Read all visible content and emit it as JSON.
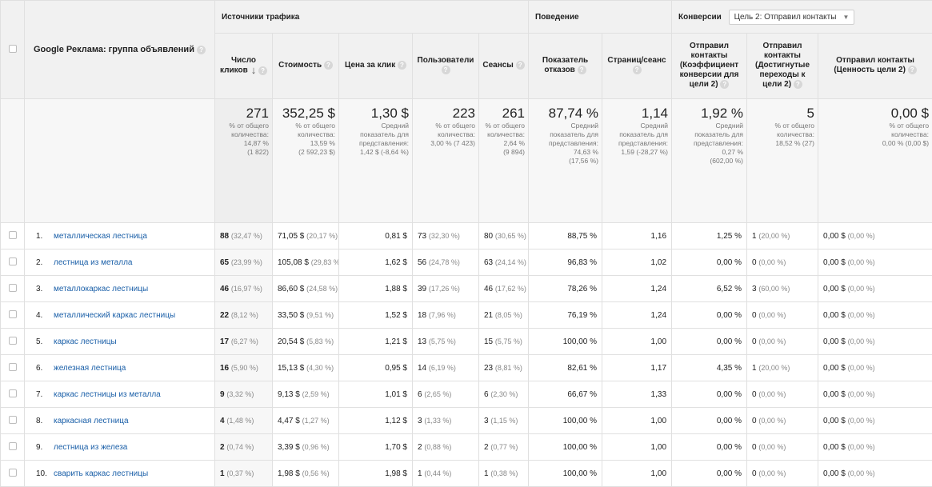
{
  "groups": {
    "traffic": "Источники трафика",
    "behavior": "Поведение",
    "conversions": "Конверсии",
    "goal_select": "Цель 2: Отправил контакты"
  },
  "dimension_header": "Google Реклама: группа объявлений",
  "columns": [
    "Число кликов",
    "Стоимость",
    "Цена за клик",
    "Пользователи",
    "Сеансы",
    "Показатель отказов",
    "Страниц/сеанс",
    "Отправил контакты (Коэффициент конверсии для цели 2)",
    "Отправил контакты (Достигнутые переходы к цели 2)",
    "Отправил контакты (Ценность цели 2)"
  ],
  "totals": [
    {
      "value": "271",
      "lines": [
        "% от общего",
        "количества:",
        "14,87 %",
        "(1 822)"
      ]
    },
    {
      "value": "352,25 $",
      "lines": [
        "% от общего",
        "количества:",
        "13,59 %",
        "(2 592,23 $)"
      ]
    },
    {
      "value": "1,30 $",
      "lines": [
        "Средний",
        "показатель для",
        "представления:",
        "1,42 $ (-8,64 %)"
      ]
    },
    {
      "value": "223",
      "lines": [
        "% от общего",
        "количества:",
        "3,00 % (7 423)"
      ]
    },
    {
      "value": "261",
      "lines": [
        "% от общего",
        "количества:",
        "2,64 %",
        "(9 894)"
      ]
    },
    {
      "value": "87,74 %",
      "lines": [
        "Средний",
        "показатель для",
        "представления:",
        "74,63 %",
        "(17,56 %)"
      ]
    },
    {
      "value": "1,14",
      "lines": [
        "Средний",
        "показатель для",
        "представления:",
        "1,59 (-28,27 %)"
      ]
    },
    {
      "value": "1,92 %",
      "lines": [
        "Средний",
        "показатель для",
        "представления:",
        "0,27 %",
        "(602,00 %)"
      ]
    },
    {
      "value": "5",
      "lines": [
        "% от общего",
        "количества:",
        "18,52 % (27)"
      ]
    },
    {
      "value": "0,00 $",
      "lines": [
        "% от общего",
        "количества:",
        "0,00 % (0,00 $)"
      ]
    }
  ],
  "rows": [
    {
      "idx": "1.",
      "name": "металлическая лестница",
      "clicks": "88",
      "clicks_pct": "(32,47 %)",
      "cost": "71,05 $",
      "cost_pct": "(20,17 %)",
      "cpc": "0,81 $",
      "users": "73",
      "users_pct": "(32,30 %)",
      "sessions": "80",
      "sessions_pct": "(30,65 %)",
      "bounce": "88,75 %",
      "pps": "1,16",
      "conv": "1,25 %",
      "goals": "1",
      "goals_pct": "(20,00 %)",
      "value": "0,00 $",
      "value_pct": "(0,00 %)"
    },
    {
      "idx": "2.",
      "name": "лестница из металла",
      "clicks": "65",
      "clicks_pct": "(23,99 %)",
      "cost": "105,08 $",
      "cost_pct": "(29,83 %)",
      "cpc": "1,62 $",
      "users": "56",
      "users_pct": "(24,78 %)",
      "sessions": "63",
      "sessions_pct": "(24,14 %)",
      "bounce": "96,83 %",
      "pps": "1,02",
      "conv": "0,00 %",
      "goals": "0",
      "goals_pct": "(0,00 %)",
      "value": "0,00 $",
      "value_pct": "(0,00 %)"
    },
    {
      "idx": "3.",
      "name": "металлокаркас лестницы",
      "clicks": "46",
      "clicks_pct": "(16,97 %)",
      "cost": "86,60 $",
      "cost_pct": "(24,58 %)",
      "cpc": "1,88 $",
      "users": "39",
      "users_pct": "(17,26 %)",
      "sessions": "46",
      "sessions_pct": "(17,62 %)",
      "bounce": "78,26 %",
      "pps": "1,24",
      "conv": "6,52 %",
      "goals": "3",
      "goals_pct": "(60,00 %)",
      "value": "0,00 $",
      "value_pct": "(0,00 %)"
    },
    {
      "idx": "4.",
      "name": "металлический каркас лестницы",
      "clicks": "22",
      "clicks_pct": "(8,12 %)",
      "cost": "33,50 $",
      "cost_pct": "(9,51 %)",
      "cpc": "1,52 $",
      "users": "18",
      "users_pct": "(7,96 %)",
      "sessions": "21",
      "sessions_pct": "(8,05 %)",
      "bounce": "76,19 %",
      "pps": "1,24",
      "conv": "0,00 %",
      "goals": "0",
      "goals_pct": "(0,00 %)",
      "value": "0,00 $",
      "value_pct": "(0,00 %)"
    },
    {
      "idx": "5.",
      "name": "каркас лестницы",
      "clicks": "17",
      "clicks_pct": "(6,27 %)",
      "cost": "20,54 $",
      "cost_pct": "(5,83 %)",
      "cpc": "1,21 $",
      "users": "13",
      "users_pct": "(5,75 %)",
      "sessions": "15",
      "sessions_pct": "(5,75 %)",
      "bounce": "100,00 %",
      "pps": "1,00",
      "conv": "0,00 %",
      "goals": "0",
      "goals_pct": "(0,00 %)",
      "value": "0,00 $",
      "value_pct": "(0,00 %)"
    },
    {
      "idx": "6.",
      "name": "железная лестница",
      "clicks": "16",
      "clicks_pct": "(5,90 %)",
      "cost": "15,13 $",
      "cost_pct": "(4,30 %)",
      "cpc": "0,95 $",
      "users": "14",
      "users_pct": "(6,19 %)",
      "sessions": "23",
      "sessions_pct": "(8,81 %)",
      "bounce": "82,61 %",
      "pps": "1,17",
      "conv": "4,35 %",
      "goals": "1",
      "goals_pct": "(20,00 %)",
      "value": "0,00 $",
      "value_pct": "(0,00 %)"
    },
    {
      "idx": "7.",
      "name": "каркас лестницы из металла",
      "clicks": "9",
      "clicks_pct": "(3,32 %)",
      "cost": "9,13 $",
      "cost_pct": "(2,59 %)",
      "cpc": "1,01 $",
      "users": "6",
      "users_pct": "(2,65 %)",
      "sessions": "6",
      "sessions_pct": "(2,30 %)",
      "bounce": "66,67 %",
      "pps": "1,33",
      "conv": "0,00 %",
      "goals": "0",
      "goals_pct": "(0,00 %)",
      "value": "0,00 $",
      "value_pct": "(0,00 %)"
    },
    {
      "idx": "8.",
      "name": "каркасная лестница",
      "clicks": "4",
      "clicks_pct": "(1,48 %)",
      "cost": "4,47 $",
      "cost_pct": "(1,27 %)",
      "cpc": "1,12 $",
      "users": "3",
      "users_pct": "(1,33 %)",
      "sessions": "3",
      "sessions_pct": "(1,15 %)",
      "bounce": "100,00 %",
      "pps": "1,00",
      "conv": "0,00 %",
      "goals": "0",
      "goals_pct": "(0,00 %)",
      "value": "0,00 $",
      "value_pct": "(0,00 %)"
    },
    {
      "idx": "9.",
      "name": "лестница из железа",
      "clicks": "2",
      "clicks_pct": "(0,74 %)",
      "cost": "3,39 $",
      "cost_pct": "(0,96 %)",
      "cpc": "1,70 $",
      "users": "2",
      "users_pct": "(0,88 %)",
      "sessions": "2",
      "sessions_pct": "(0,77 %)",
      "bounce": "100,00 %",
      "pps": "1,00",
      "conv": "0,00 %",
      "goals": "0",
      "goals_pct": "(0,00 %)",
      "value": "0,00 $",
      "value_pct": "(0,00 %)"
    },
    {
      "idx": "10.",
      "name": "сварить каркас лестницы",
      "clicks": "1",
      "clicks_pct": "(0,37 %)",
      "cost": "1,98 $",
      "cost_pct": "(0,56 %)",
      "cpc": "1,98 $",
      "users": "1",
      "users_pct": "(0,44 %)",
      "sessions": "1",
      "sessions_pct": "(0,38 %)",
      "bounce": "100,00 %",
      "pps": "1,00",
      "conv": "0,00 %",
      "goals": "0",
      "goals_pct": "(0,00 %)",
      "value": "0,00 $",
      "value_pct": "(0,00 %)"
    }
  ]
}
